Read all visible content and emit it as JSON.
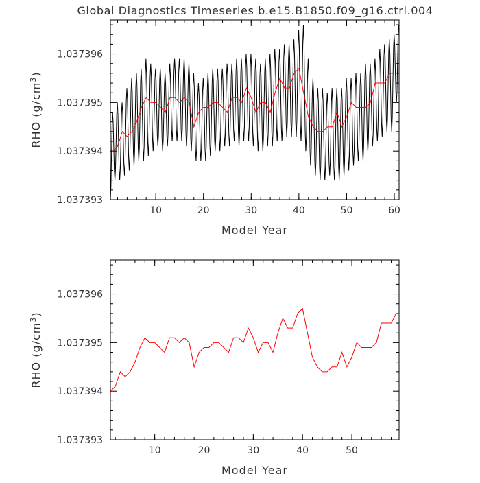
{
  "title": "Global Diagnostics Timeseries b.e15.B1850.f09_g16.ctrl.004",
  "chart_data": [
    {
      "type": "line",
      "xlabel": "Model Year",
      "ylabel_base": "RHO (g/cm",
      "ylabel_sup": "3",
      "ylabel_end": ")",
      "xlim": [
        0.5,
        61
      ],
      "ylim": [
        1.037393,
        1.0373967
      ],
      "xticks": [
        10,
        20,
        30,
        40,
        50,
        60
      ],
      "xtick_labels": [
        "10",
        "20",
        "30",
        "40",
        "50",
        "60"
      ],
      "yticks": [
        1.037393,
        1.037394,
        1.037395,
        1.037396
      ],
      "ytick_labels": [
        "1.037393",
        "1.037394",
        "1.037395",
        "1.037396"
      ],
      "series": [
        {
          "color": "#000000",
          "style": "monthly-oscillation",
          "x": [
            0.5,
            0.95,
            1.45,
            1.95,
            2.45,
            2.95,
            3.45,
            3.95,
            4.45,
            4.95,
            5.45,
            5.95,
            6.45,
            6.95,
            7.45,
            7.95,
            8.45,
            8.95,
            9.45,
            9.95,
            10.45,
            10.95,
            11.45,
            11.95,
            12.45,
            12.95,
            13.45,
            13.95,
            14.45,
            14.95,
            15.45,
            15.95,
            16.45,
            16.95,
            17.45,
            17.95,
            18.45,
            18.95,
            19.45,
            19.95,
            20.45,
            20.95,
            21.45,
            21.95,
            22.45,
            22.95,
            23.45,
            23.95,
            24.45,
            24.95,
            25.45,
            25.95,
            26.45,
            26.95,
            27.45,
            27.95,
            28.45,
            28.95,
            29.45,
            29.95,
            30.45,
            30.95,
            31.45,
            31.95,
            32.45,
            32.95,
            33.45,
            33.95,
            34.45,
            34.95,
            35.45,
            35.95,
            36.45,
            36.95,
            37.45,
            37.95,
            38.45,
            38.95,
            39.45,
            39.95,
            40.45,
            40.95,
            41.45,
            41.95,
            42.45,
            42.95,
            43.45,
            43.95,
            44.45,
            44.95,
            45.45,
            45.95,
            46.45,
            46.95,
            47.45,
            47.95,
            48.45,
            48.95,
            49.45,
            49.95,
            50.45,
            50.95,
            51.45,
            51.95,
            52.45,
            52.95,
            53.45,
            53.95,
            54.45,
            54.95,
            55.45,
            55.95,
            56.45,
            56.95,
            57.45,
            57.95,
            58.45,
            58.95,
            59.45,
            59.95,
            60.45,
            60.9
          ],
          "y": [
            1.037393,
            1.0373948,
            1.0373934,
            1.037395,
            1.0373934,
            1.037395,
            1.0373935,
            1.0373953,
            1.0373936,
            1.0373955,
            1.0373937,
            1.0373956,
            1.0373938,
            1.0373957,
            1.0373938,
            1.0373959,
            1.0373939,
            1.0373958,
            1.037394,
            1.0373957,
            1.0373941,
            1.0373957,
            1.037394,
            1.0373956,
            1.0373941,
            1.0373958,
            1.0373942,
            1.0373959,
            1.0373942,
            1.0373959,
            1.0373942,
            1.0373959,
            1.0373941,
            1.0373958,
            1.037394,
            1.0373956,
            1.0373938,
            1.0373954,
            1.0373938,
            1.0373955,
            1.0373938,
            1.0373956,
            1.0373939,
            1.0373957,
            1.037394,
            1.0373957,
            1.037394,
            1.0373957,
            1.0373941,
            1.0373958,
            1.0373941,
            1.0373958,
            1.0373942,
            1.0373959,
            1.0373941,
            1.0373959,
            1.0373942,
            1.037396,
            1.0373942,
            1.037396,
            1.0373941,
            1.0373959,
            1.037394,
            1.0373958,
            1.037394,
            1.0373959,
            1.0373941,
            1.037396,
            1.0373941,
            1.0373961,
            1.0373942,
            1.0373961,
            1.0373942,
            1.0373962,
            1.0373943,
            1.0373962,
            1.0373943,
            1.0373963,
            1.0373943,
            1.0373965,
            1.0373942,
            1.0373966,
            1.037394,
            1.0373959,
            1.0373937,
            1.0373955,
            1.0373935,
            1.0373953,
            1.0373934,
            1.0373953,
            1.0373934,
            1.0373952,
            1.0373935,
            1.0373953,
            1.0373934,
            1.0373953,
            1.0373934,
            1.0373953,
            1.0373935,
            1.0373955,
            1.0373936,
            1.0373955,
            1.0373937,
            1.0373956,
            1.0373938,
            1.0373956,
            1.0373938,
            1.0373958,
            1.037394,
            1.0373958,
            1.0373941,
            1.0373959,
            1.0373942,
            1.0373961,
            1.0373943,
            1.0373962,
            1.0373944,
            1.0373963,
            1.0373944,
            1.0373964,
            1.037395,
            1.0373966
          ]
        },
        {
          "color": "#ff0000",
          "style": "annual-mean",
          "x": [
            1,
            2,
            3,
            4,
            5,
            6,
            7,
            8,
            9,
            10,
            11,
            12,
            13,
            14,
            15,
            16,
            17,
            18,
            19,
            20,
            21,
            22,
            23,
            24,
            25,
            26,
            27,
            28,
            29,
            30,
            31,
            32,
            33,
            34,
            35,
            36,
            37,
            38,
            39,
            40,
            41,
            42,
            43,
            44,
            45,
            46,
            47,
            48,
            49,
            50,
            51,
            52,
            53,
            54,
            55,
            56,
            57,
            58,
            59,
            60
          ],
          "y": [
            1.037394,
            1.0373941,
            1.0373944,
            1.0373943,
            1.0373944,
            1.0373946,
            1.0373949,
            1.0373951,
            1.037395,
            1.037395,
            1.0373949,
            1.0373948,
            1.0373951,
            1.0373951,
            1.037395,
            1.0373951,
            1.037395,
            1.0373945,
            1.0373948,
            1.0373949,
            1.0373949,
            1.037395,
            1.037395,
            1.0373949,
            1.0373948,
            1.0373951,
            1.0373951,
            1.037395,
            1.0373953,
            1.0373951,
            1.0373948,
            1.037395,
            1.037395,
            1.0373948,
            1.0373952,
            1.0373955,
            1.0373953,
            1.0373953,
            1.0373956,
            1.0373957,
            1.0373952,
            1.0373947,
            1.0373945,
            1.0373944,
            1.0373944,
            1.0373945,
            1.0373945,
            1.0373948,
            1.0373945,
            1.0373947,
            1.037395,
            1.0373949,
            1.0373949,
            1.0373949,
            1.037395,
            1.0373954,
            1.0373954,
            1.0373954,
            1.0373956,
            1.0373956
          ]
        }
      ]
    },
    {
      "type": "line",
      "xlabel": "Model Year",
      "ylabel_base": "RHO (g/cm",
      "ylabel_sup": "3",
      "ylabel_end": ")",
      "xlim": [
        1,
        59.6
      ],
      "ylim": [
        1.037393,
        1.0373967
      ],
      "xticks": [
        10,
        20,
        30,
        40,
        50
      ],
      "xtick_labels": [
        "10",
        "20",
        "30",
        "40",
        "50"
      ],
      "yticks": [
        1.037393,
        1.037394,
        1.037395,
        1.037396
      ],
      "ytick_labels": [
        "1.037393",
        "1.037394",
        "1.037395",
        "1.037396"
      ],
      "series": [
        {
          "color": "#ff0000",
          "style": "annual-mean",
          "x": [
            1,
            2,
            3,
            4,
            5,
            6,
            7,
            8,
            9,
            10,
            11,
            12,
            13,
            14,
            15,
            16,
            17,
            18,
            19,
            20,
            21,
            22,
            23,
            24,
            25,
            26,
            27,
            28,
            29,
            30,
            31,
            32,
            33,
            34,
            35,
            36,
            37,
            38,
            39,
            40,
            41,
            42,
            43,
            44,
            45,
            46,
            47,
            48,
            49,
            50,
            51,
            52,
            53,
            54,
            55,
            56,
            57,
            58,
            59,
            60
          ],
          "y": [
            1.037394,
            1.0373941,
            1.0373944,
            1.0373943,
            1.0373944,
            1.0373946,
            1.0373949,
            1.0373951,
            1.037395,
            1.037395,
            1.0373949,
            1.0373948,
            1.0373951,
            1.0373951,
            1.037395,
            1.0373951,
            1.037395,
            1.0373945,
            1.0373948,
            1.0373949,
            1.0373949,
            1.037395,
            1.037395,
            1.0373949,
            1.0373948,
            1.0373951,
            1.0373951,
            1.037395,
            1.0373953,
            1.0373951,
            1.0373948,
            1.037395,
            1.037395,
            1.0373948,
            1.0373952,
            1.0373955,
            1.0373953,
            1.0373953,
            1.0373956,
            1.0373957,
            1.0373952,
            1.0373947,
            1.0373945,
            1.0373944,
            1.0373944,
            1.0373945,
            1.0373945,
            1.0373948,
            1.0373945,
            1.0373947,
            1.037395,
            1.0373949,
            1.0373949,
            1.0373949,
            1.037395,
            1.0373954,
            1.0373954,
            1.0373954,
            1.0373956,
            1.0373956
          ]
        }
      ]
    }
  ]
}
